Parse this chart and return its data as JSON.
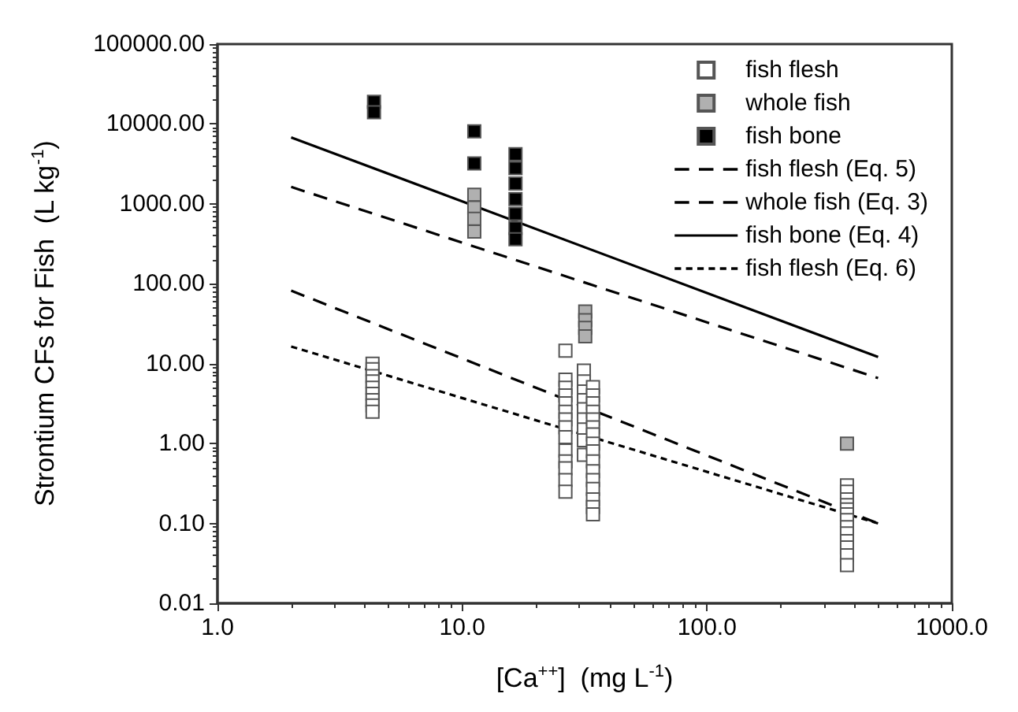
{
  "chart_data": {
    "type": "scatter",
    "xlabel": "[Ca$^{++}$]  (mg L$^{-1}$)",
    "ylabel": "Strontium CFs for Fish  (L kg$^{-1}$)",
    "log": "xy",
    "grid": false,
    "legend": "top right",
    "marker": "square",
    "xlim": [
      1,
      1000
    ],
    "xticks": [
      {
        "value": 1,
        "label": "1.0"
      },
      {
        "value": 10,
        "label": "10.0"
      },
      {
        "value": 100,
        "label": "100.0"
      },
      {
        "value": 1000,
        "label": "1000.0"
      }
    ],
    "ylim": [
      0.01,
      100000
    ],
    "yticks": [
      {
        "value": 0.01,
        "label": "0.01"
      },
      {
        "value": 0.1,
        "label": "0.10"
      },
      {
        "value": 1,
        "label": "1.00"
      },
      {
        "value": 10,
        "label": "10.00"
      },
      {
        "value": 100,
        "label": "100.00"
      },
      {
        "value": 1000,
        "label": "1000.00"
      },
      {
        "value": 10000,
        "label": "10000.00"
      },
      {
        "value": 100000,
        "label": "100000.00"
      }
    ],
    "series": [
      {
        "name": "fish flesh",
        "color": "#ffffff",
        "x": [
          4.3,
          4.3,
          4.3,
          4.3,
          4.3,
          4.3,
          4.3,
          4.3,
          4.3,
          26.4,
          26.4,
          26.4,
          26.4,
          26.4,
          26.4,
          26.4,
          26.4,
          26.4,
          26.4,
          26.4,
          26.4,
          26.4,
          26.4,
          31.4,
          31.4,
          31.4,
          31.4,
          31.4,
          31.4,
          31.4,
          31.4,
          31.4,
          34.2,
          34.2,
          34.2,
          34.2,
          34.2,
          34.2,
          34.2,
          34.2,
          34.2,
          34.2,
          34.2,
          34.2,
          34.2,
          34.2,
          34.2,
          34.2,
          373,
          373,
          373,
          373,
          373,
          373,
          373,
          373,
          373,
          373,
          373,
          373,
          373
        ],
        "values": [
          10,
          8.5,
          7,
          6,
          5,
          4.2,
          3.5,
          3,
          2.5,
          14.5,
          6.3,
          5,
          4,
          3.2,
          2.5,
          2,
          1.6,
          1.2,
          0.82,
          0.6,
          0.49,
          0.35,
          0.25,
          8.2,
          6,
          4.5,
          3.5,
          2.7,
          2,
          1.5,
          1.1,
          0.72,
          5.1,
          4,
          3.2,
          2.5,
          2,
          1.6,
          1.3,
          1,
          0.8,
          0.6,
          0.45,
          0.35,
          0.27,
          0.2,
          0.16,
          0.13,
          0.3,
          0.25,
          0.2,
          0.17,
          0.15,
          0.13,
          0.11,
          0.09,
          0.075,
          0.06,
          0.05,
          0.04,
          0.03
        ]
      },
      {
        "name": "whole fish",
        "color": "#b0b0b0",
        "x": [
          11.2,
          11.2,
          11.2,
          11.2,
          31.8,
          31.8,
          31.8,
          31.8,
          373
        ],
        "values": [
          1300,
          900,
          650,
          450,
          45,
          35,
          28,
          22,
          1.0
        ]
      },
      {
        "name": "fish bone",
        "color": "#000000",
        "x": [
          4.36,
          4.36,
          11.2,
          11.2,
          16.5,
          16.5,
          16.5,
          16.5,
          16.5,
          16.5,
          16.5
        ],
        "values": [
          19000,
          14000,
          8100,
          3200,
          4200,
          2800,
          1800,
          1150,
          750,
          500,
          360
        ]
      },
      {
        "name": "fish flesh (Eq. 5)",
        "type": "line",
        "color": "#000000",
        "line_style": "dashed",
        "marker": "none",
        "x": [
          2,
          500
        ],
        "values": [
          82,
          0.1
        ]
      },
      {
        "name": "whole fish (Eq. 3)",
        "type": "line",
        "color": "#000000",
        "line_style": "dashed",
        "marker": "none",
        "x": [
          2,
          500
        ],
        "values": [
          1630,
          6.6
        ]
      },
      {
        "name": "fish bone (Eq. 4)",
        "type": "line",
        "color": "#000000",
        "line_style": "solid",
        "marker": "none",
        "x": [
          2,
          500
        ],
        "values": [
          6800,
          12.1
        ]
      },
      {
        "name": "fish flesh (Eq. 6)",
        "type": "line",
        "color": "#000000",
        "line_style": "dotted",
        "marker": "none",
        "x": [
          2,
          500
        ],
        "values": [
          16.4,
          0.1
        ]
      }
    ]
  }
}
